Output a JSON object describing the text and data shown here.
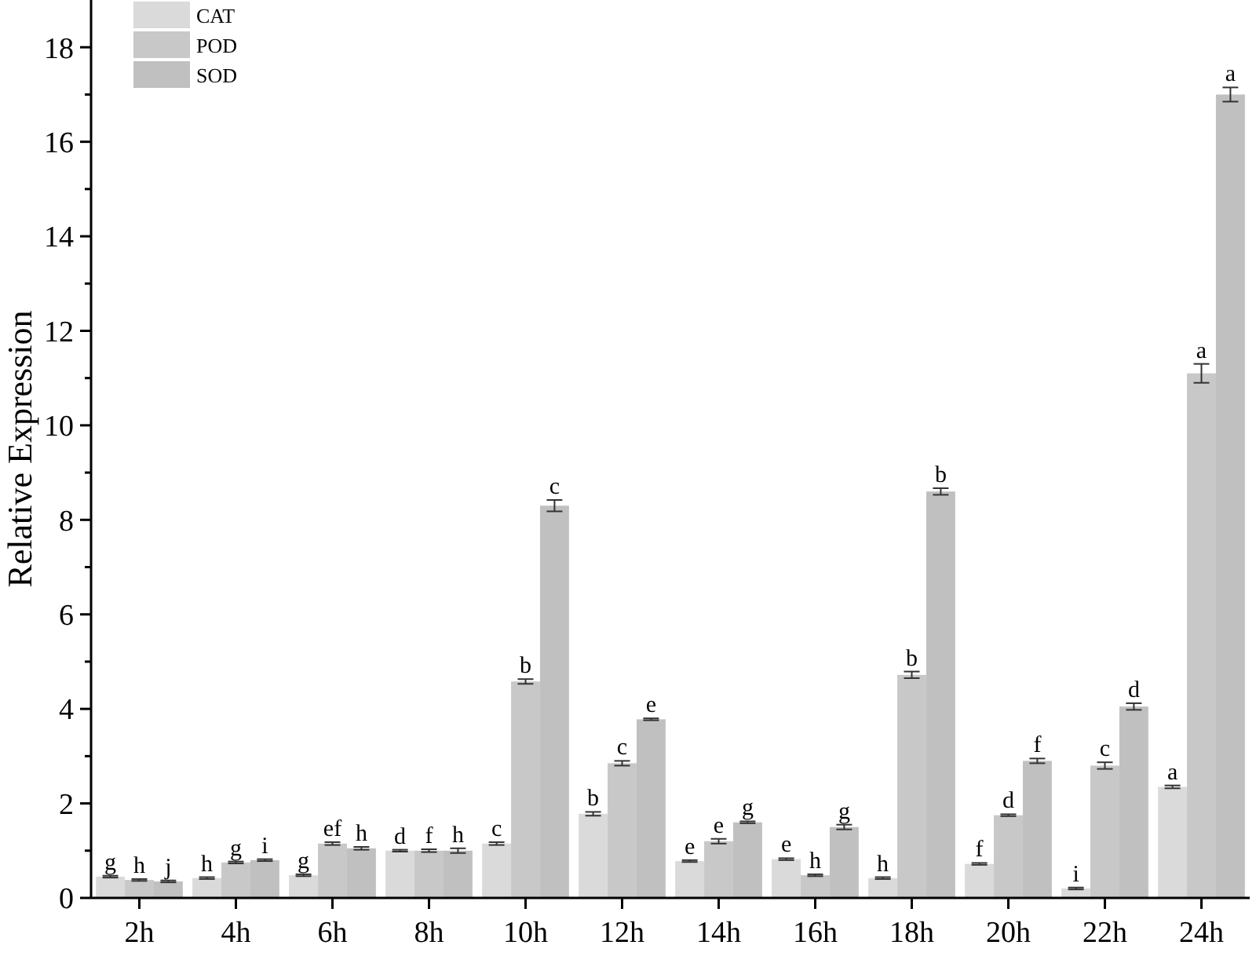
{
  "chart_data": {
    "type": "bar",
    "ylabel": "Relative Expression",
    "categories": [
      "2h",
      "4h",
      "6h",
      "8h",
      "10h",
      "12h",
      "14h",
      "16h",
      "18h",
      "20h",
      "22h",
      "24h"
    ],
    "series": [
      {
        "name": "CAT",
        "color": "#dadada",
        "values": [
          0.45,
          0.42,
          0.48,
          1.0,
          1.15,
          1.78,
          0.78,
          0.82,
          0.42,
          0.72,
          0.2,
          2.35
        ],
        "errors": [
          0.02,
          0.02,
          0.02,
          0.02,
          0.03,
          0.04,
          0.02,
          0.02,
          0.02,
          0.02,
          0.02,
          0.03
        ],
        "value_labels": [
          "g",
          "h",
          "g",
          "d",
          "c",
          "b",
          "e",
          "e",
          "h",
          "f",
          "i",
          "a"
        ]
      },
      {
        "name": "POD",
        "color": "#c8c8c8",
        "values": [
          0.38,
          0.75,
          1.15,
          1.0,
          4.58,
          2.85,
          1.2,
          0.48,
          4.72,
          1.75,
          2.8,
          11.1
        ],
        "errors": [
          0.02,
          0.02,
          0.03,
          0.03,
          0.05,
          0.05,
          0.05,
          0.02,
          0.07,
          0.02,
          0.07,
          0.2
        ],
        "value_labels": [
          "h",
          "g",
          "ef",
          "f",
          "b",
          "c",
          "e",
          "h",
          "b",
          "d",
          "c",
          "a"
        ]
      },
      {
        "name": "SOD",
        "color": "#c0c0c0",
        "values": [
          0.35,
          0.8,
          1.05,
          1.0,
          8.3,
          3.78,
          1.6,
          1.5,
          8.6,
          2.9,
          4.05,
          17.0
        ],
        "errors": [
          0.02,
          0.02,
          0.03,
          0.05,
          0.12,
          0.02,
          0.02,
          0.05,
          0.07,
          0.05,
          0.07,
          0.15
        ],
        "value_labels": [
          "j",
          "i",
          "h",
          "h",
          "c",
          "e",
          "g",
          "g",
          "b",
          "f",
          "d",
          "a"
        ]
      }
    ],
    "ylim": [
      0,
      19
    ],
    "yticks": [
      0,
      {
        "value": 1,
        "label": null
      },
      2,
      {
        "value": 3,
        "label": null
      },
      4,
      {
        "value": 5,
        "label": null
      },
      6,
      {
        "value": 7,
        "label": null
      },
      8,
      {
        "value": 9,
        "label": null
      },
      10,
      {
        "value": 11,
        "label": null
      },
      12,
      {
        "value": 13,
        "label": null
      },
      14,
      {
        "value": 15,
        "label": null
      },
      16,
      {
        "value": 17,
        "label": null
      },
      18
    ],
    "legend": "top left",
    "grid": false
  }
}
